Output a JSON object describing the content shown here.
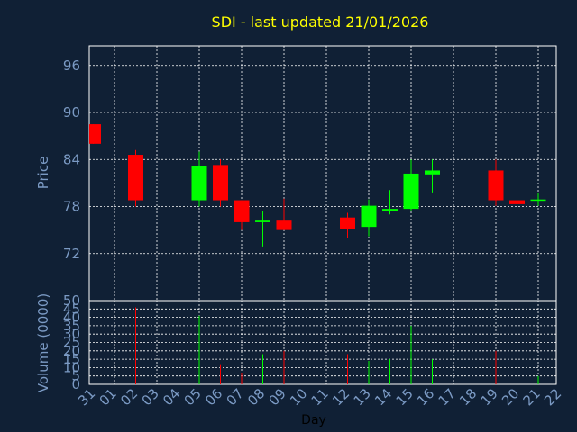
{
  "chart_data": [
    {
      "type": "candlestick",
      "title": "SDI - last updated 21/01/2026",
      "ylabel": "Price",
      "ylim": [
        66,
        98.5
      ],
      "yticks": [
        72,
        78,
        84,
        90,
        96
      ],
      "grid": true,
      "categories": [
        "31",
        "01",
        "02",
        "03",
        "04",
        "05",
        "06",
        "07",
        "08",
        "09",
        "10",
        "11",
        "12",
        "13",
        "14",
        "15",
        "16",
        "17",
        "18",
        "19",
        "20",
        "21",
        "22"
      ],
      "candles": [
        {
          "x": "31",
          "open": 88.5,
          "high": 88.5,
          "low": 86.0,
          "close": 86.0
        },
        {
          "x": "02",
          "open": 84.6,
          "high": 85.2,
          "low": 78.0,
          "close": 78.8
        },
        {
          "x": "05",
          "open": 78.8,
          "high": 85.0,
          "low": 78.0,
          "close": 83.2
        },
        {
          "x": "06",
          "open": 83.3,
          "high": 84.0,
          "low": 78.0,
          "close": 78.8
        },
        {
          "x": "07",
          "open": 78.8,
          "high": 78.8,
          "low": 75.0,
          "close": 76.0
        },
        {
          "x": "08",
          "open": 76.0,
          "high": 77.4,
          "low": 72.9,
          "close": 76.2
        },
        {
          "x": "09",
          "open": 76.2,
          "high": 79.0,
          "low": 75.0,
          "close": 75.0
        },
        {
          "x": "12",
          "open": 76.6,
          "high": 77.2,
          "low": 74.0,
          "close": 75.1
        },
        {
          "x": "13",
          "open": 75.4,
          "high": 78.9,
          "low": 74.2,
          "close": 78.1
        },
        {
          "x": "14",
          "open": 77.4,
          "high": 80.1,
          "low": 77.0,
          "close": 77.7
        },
        {
          "x": "15",
          "open": 77.7,
          "high": 84.0,
          "low": 77.5,
          "close": 82.2
        },
        {
          "x": "16",
          "open": 82.1,
          "high": 84.0,
          "low": 79.8,
          "close": 82.6
        },
        {
          "x": "19",
          "open": 82.6,
          "high": 84.0,
          "low": 78.1,
          "close": 78.8
        },
        {
          "x": "20",
          "open": 78.8,
          "high": 79.9,
          "low": 78.1,
          "close": 78.3
        },
        {
          "x": "21",
          "open": 78.8,
          "high": 79.7,
          "low": 78.1,
          "close": 78.9
        }
      ]
    },
    {
      "type": "bar",
      "ylabel": "Volume (0000)",
      "xlabel": "Day",
      "ylim": [
        0,
        50
      ],
      "yticks": [
        0,
        5,
        10,
        15,
        20,
        25,
        30,
        35,
        40,
        45,
        50
      ],
      "grid": true,
      "volumes": [
        {
          "x": "02",
          "value": 46,
          "direction": "down"
        },
        {
          "x": "05",
          "value": 41,
          "direction": "up"
        },
        {
          "x": "06",
          "value": 12,
          "direction": "down"
        },
        {
          "x": "07",
          "value": 7,
          "direction": "down"
        },
        {
          "x": "08",
          "value": 18,
          "direction": "up"
        },
        {
          "x": "09",
          "value": 20,
          "direction": "down"
        },
        {
          "x": "12",
          "value": 18,
          "direction": "down"
        },
        {
          "x": "13",
          "value": 14,
          "direction": "up"
        },
        {
          "x": "14",
          "value": 15,
          "direction": "up"
        },
        {
          "x": "15",
          "value": 35,
          "direction": "up"
        },
        {
          "x": "16",
          "value": 15,
          "direction": "up"
        },
        {
          "x": "19",
          "value": 20,
          "direction": "down"
        },
        {
          "x": "20",
          "value": 12,
          "direction": "down"
        },
        {
          "x": "21",
          "value": 5,
          "direction": "up"
        }
      ]
    }
  ],
  "colors": {
    "background": "#102035",
    "up": "#00ff00",
    "down": "#ff0000",
    "title": "#ffff00",
    "tick": "#7b9ac4",
    "grid": "#ffffff"
  }
}
